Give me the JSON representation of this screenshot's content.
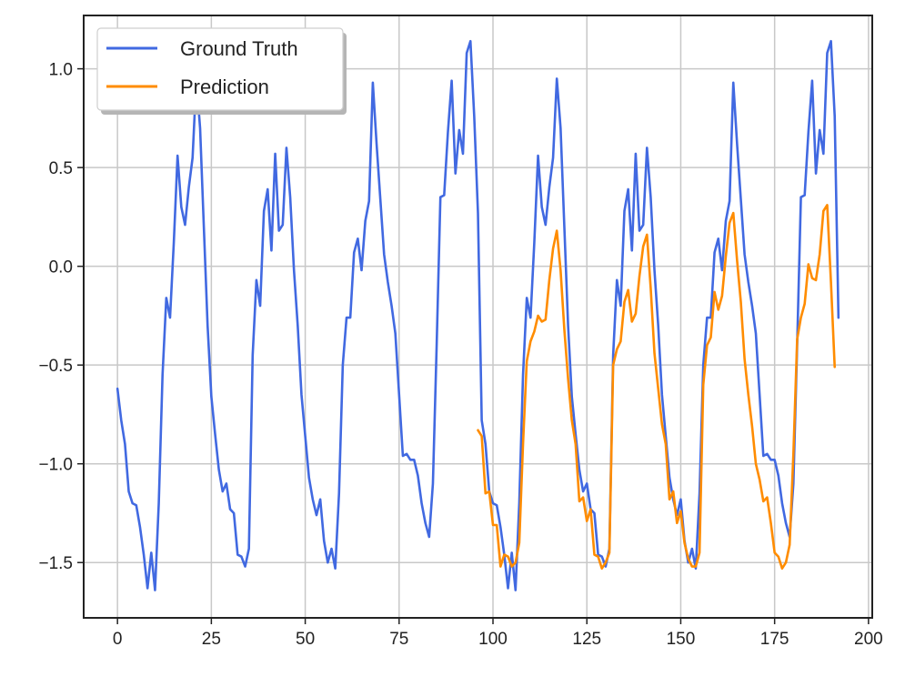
{
  "chart_data": {
    "type": "line",
    "title": "",
    "xlabel": "",
    "ylabel": "",
    "xlim": [
      -9,
      201
    ],
    "ylim": [
      -1.78,
      1.27
    ],
    "xticks": [
      0,
      25,
      50,
      75,
      100,
      125,
      150,
      175,
      200
    ],
    "yticks": [
      -1.5,
      -1.0,
      -0.5,
      0.0,
      0.5,
      1.0
    ],
    "ytick_labels": [
      "−1.5",
      "−1.0",
      "−0.5",
      "0.0",
      "0.5",
      "1.0"
    ],
    "grid": true,
    "legend_position": "top-left",
    "series": [
      {
        "name": "Ground Truth",
        "color": "#4169e1",
        "x_start": 0,
        "values": [
          -0.62,
          -0.78,
          -0.9,
          -1.14,
          -1.2,
          -1.21,
          -1.32,
          -1.46,
          -1.63,
          -1.45,
          -1.64,
          -1.2,
          -0.55,
          -0.16,
          -0.26,
          0.12,
          0.56,
          0.3,
          0.21,
          0.4,
          0.55,
          0.95,
          0.7,
          0.2,
          -0.3,
          -0.66,
          -0.85,
          -1.03,
          -1.14,
          -1.1,
          -1.23,
          -1.25,
          -1.46,
          -1.47,
          -1.52,
          -1.43,
          -0.45,
          -0.07,
          -0.2,
          0.28,
          0.39,
          0.08,
          0.57,
          0.18,
          0.21,
          0.6,
          0.35,
          -0.02,
          -0.3,
          -0.65,
          -0.86,
          -1.07,
          -1.18,
          -1.26,
          -1.18,
          -1.39,
          -1.5,
          -1.43,
          -1.53,
          -1.15,
          -0.5,
          -0.26,
          -0.26,
          0.07,
          0.14,
          -0.02,
          0.23,
          0.33,
          0.93,
          0.62,
          0.34,
          0.06,
          -0.08,
          -0.2,
          -0.34,
          -0.65,
          -0.96,
          -0.95,
          -0.98,
          -0.98,
          -1.06,
          -1.2,
          -1.3,
          -1.37,
          -1.1,
          -0.4,
          0.35,
          0.36,
          0.68,
          0.94,
          0.47,
          0.69,
          0.57,
          1.08,
          1.14,
          0.76,
          0.27,
          -0.78,
          -0.9,
          -1.14,
          -1.2,
          -1.21,
          -1.32,
          -1.46,
          -1.63,
          -1.45,
          -1.64,
          -1.2,
          -0.55,
          -0.16,
          -0.26,
          0.12,
          0.56,
          0.3,
          0.21,
          0.4,
          0.55,
          0.95,
          0.7,
          0.2,
          -0.3,
          -0.66,
          -0.85,
          -1.03,
          -1.14,
          -1.1,
          -1.23,
          -1.25,
          -1.46,
          -1.47,
          -1.52,
          -1.43,
          -0.45,
          -0.07,
          -0.2,
          0.28,
          0.39,
          0.08,
          0.57,
          0.18,
          0.21,
          0.6,
          0.35,
          -0.02,
          -0.3,
          -0.65,
          -0.86,
          -1.07,
          -1.18,
          -1.26,
          -1.18,
          -1.39,
          -1.5,
          -1.43,
          -1.53,
          -1.15,
          -0.5,
          -0.26,
          -0.26,
          0.07,
          0.14,
          -0.02,
          0.23,
          0.33,
          0.93,
          0.62,
          0.34,
          0.06,
          -0.08,
          -0.2,
          -0.34,
          -0.65,
          -0.96,
          -0.95,
          -0.98,
          -0.98,
          -1.06,
          -1.2,
          -1.3,
          -1.37,
          -1.1,
          -0.4,
          0.35,
          0.36,
          0.68,
          0.94,
          0.47,
          0.69,
          0.57,
          1.08,
          1.14,
          0.76,
          -0.26
        ]
      },
      {
        "name": "Prediction",
        "color": "#ff8c00",
        "x_start": 96,
        "values": [
          -0.83,
          -0.86,
          -1.15,
          -1.14,
          -1.31,
          -1.31,
          -1.52,
          -1.46,
          -1.47,
          -1.52,
          -1.5,
          -1.4,
          -0.9,
          -0.48,
          -0.38,
          -0.33,
          -0.25,
          -0.28,
          -0.27,
          -0.07,
          0.09,
          0.18,
          -0.02,
          -0.32,
          -0.57,
          -0.78,
          -0.9,
          -1.19,
          -1.17,
          -1.29,
          -1.23,
          -1.46,
          -1.47,
          -1.53,
          -1.5,
          -1.45,
          -0.5,
          -0.42,
          -0.38,
          -0.18,
          -0.12,
          -0.28,
          -0.24,
          -0.05,
          0.1,
          0.16,
          -0.11,
          -0.44,
          -0.62,
          -0.8,
          -0.9,
          -1.18,
          -1.14,
          -1.3,
          -1.24,
          -1.4,
          -1.48,
          -1.52,
          -1.52,
          -1.45,
          -0.6,
          -0.4,
          -0.36,
          -0.13,
          -0.22,
          -0.15,
          0.05,
          0.22,
          0.27,
          0.03,
          -0.18,
          -0.47,
          -0.65,
          -0.81,
          -1.0,
          -1.08,
          -1.19,
          -1.17,
          -1.3,
          -1.45,
          -1.47,
          -1.53,
          -1.5,
          -1.41,
          -0.95,
          -0.37,
          -0.26,
          -0.19,
          0.01,
          -0.06,
          -0.07,
          0.06,
          0.28,
          0.31,
          -0.08,
          -0.51
        ]
      }
    ]
  }
}
